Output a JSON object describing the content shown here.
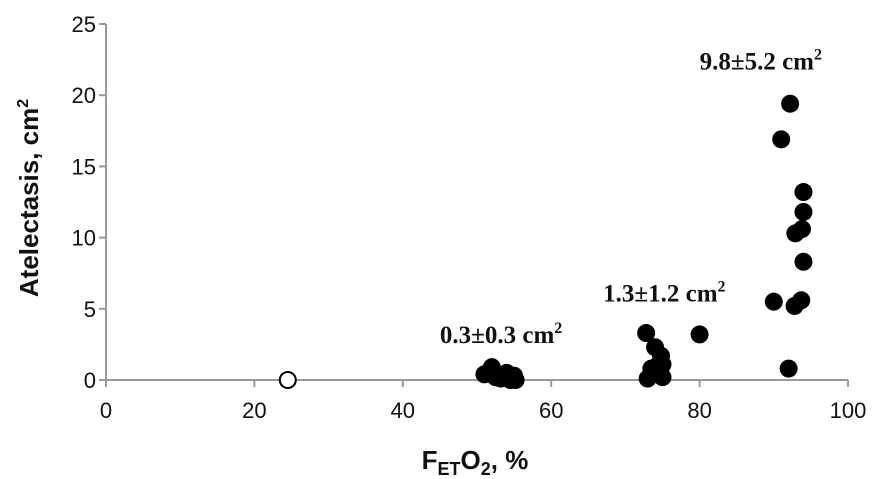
{
  "chart_data": {
    "type": "scatter",
    "xlabel_main": "F",
    "xlabel_sub": "ET",
    "xlabel_o": "O",
    "xlabel_o_sub": "2",
    "xlabel_rest": ", %",
    "ylabel_main": "Atelectasis, cm",
    "ylabel_sup": "2",
    "xlim": [
      0,
      100
    ],
    "ylim": [
      0,
      25
    ],
    "x_ticks": [
      "0",
      "20",
      "40",
      "60",
      "80",
      "100"
    ],
    "y_ticks": [
      "0",
      "5",
      "10",
      "15",
      "20",
      "25"
    ],
    "grid": false,
    "annotations": [
      {
        "text": "0.3±0.3 cm",
        "sup": "2",
        "x": 45.0,
        "y": 2.6
      },
      {
        "text": "1.3±1.2 cm",
        "sup": "2",
        "x": 67.0,
        "y": 5.5
      },
      {
        "text": "9.8±5.2 cm",
        "sup": "2",
        "x": 80.0,
        "y": 21.8
      }
    ],
    "series": [
      {
        "marker": "open-circle",
        "points": [
          [
            24.5,
            0.0
          ]
        ]
      },
      {
        "marker": "filled-circle",
        "points": [
          [
            51.0,
            0.4
          ],
          [
            52.0,
            0.9
          ],
          [
            52.5,
            0.2
          ],
          [
            53.2,
            0.1
          ],
          [
            54.0,
            0.5
          ],
          [
            54.5,
            0.0
          ],
          [
            55.0,
            0.3
          ],
          [
            55.2,
            0.0
          ],
          [
            72.8,
            3.3
          ],
          [
            73.0,
            0.1
          ],
          [
            73.5,
            0.8
          ],
          [
            74.0,
            2.3
          ],
          [
            74.3,
            1.0
          ],
          [
            74.6,
            0.4
          ],
          [
            74.8,
            1.7
          ],
          [
            75.0,
            1.1
          ],
          [
            75.0,
            0.2
          ],
          [
            80.0,
            3.2
          ],
          [
            90.0,
            5.5
          ],
          [
            91.0,
            16.9
          ],
          [
            92.0,
            0.8
          ],
          [
            92.2,
            19.4
          ],
          [
            92.8,
            5.2
          ],
          [
            92.9,
            10.3
          ],
          [
            93.7,
            5.6
          ],
          [
            93.8,
            10.6
          ],
          [
            94.0,
            8.3
          ],
          [
            94.0,
            11.8
          ],
          [
            94.0,
            13.2
          ]
        ]
      }
    ],
    "colors": {
      "axis": "#9a9a9a",
      "marker": "#000000",
      "text": "#111111"
    }
  }
}
